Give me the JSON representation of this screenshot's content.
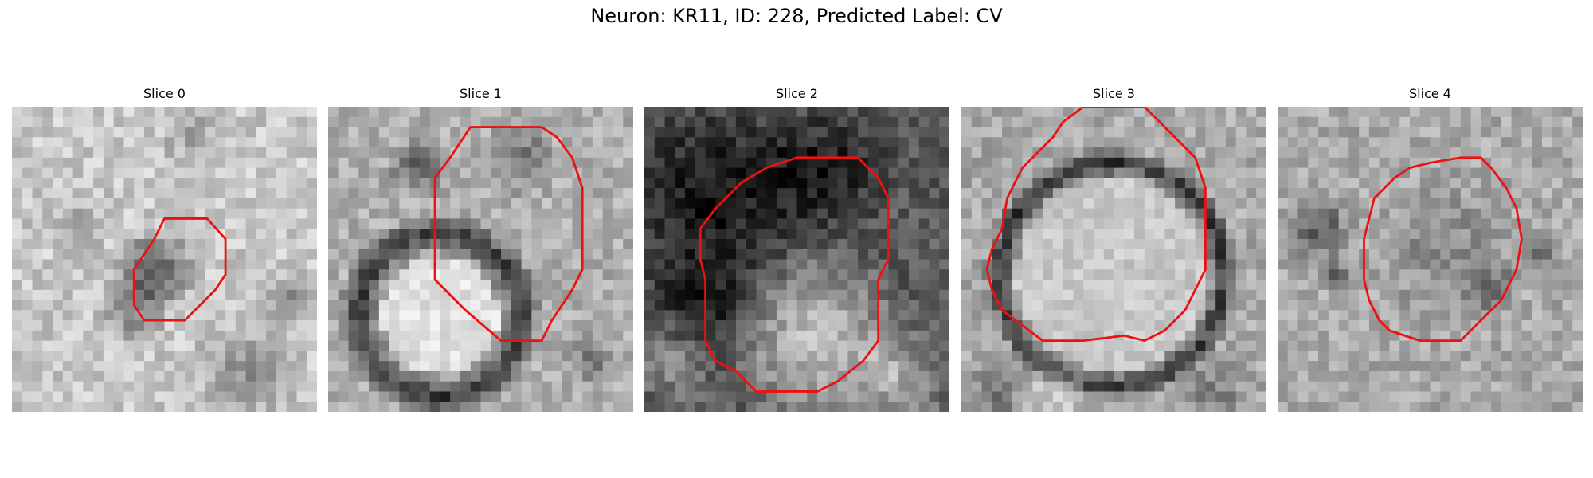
{
  "figure": {
    "title": "Neuron: KR11, ID: 228, Predicted Label: CV",
    "outline_color": "#ee1111"
  },
  "slices": [
    {
      "title": "Slice 0"
    },
    {
      "title": "Slice 1"
    },
    {
      "title": "Slice 2"
    },
    {
      "title": "Slice 3"
    },
    {
      "title": "Slice 4"
    }
  ]
}
